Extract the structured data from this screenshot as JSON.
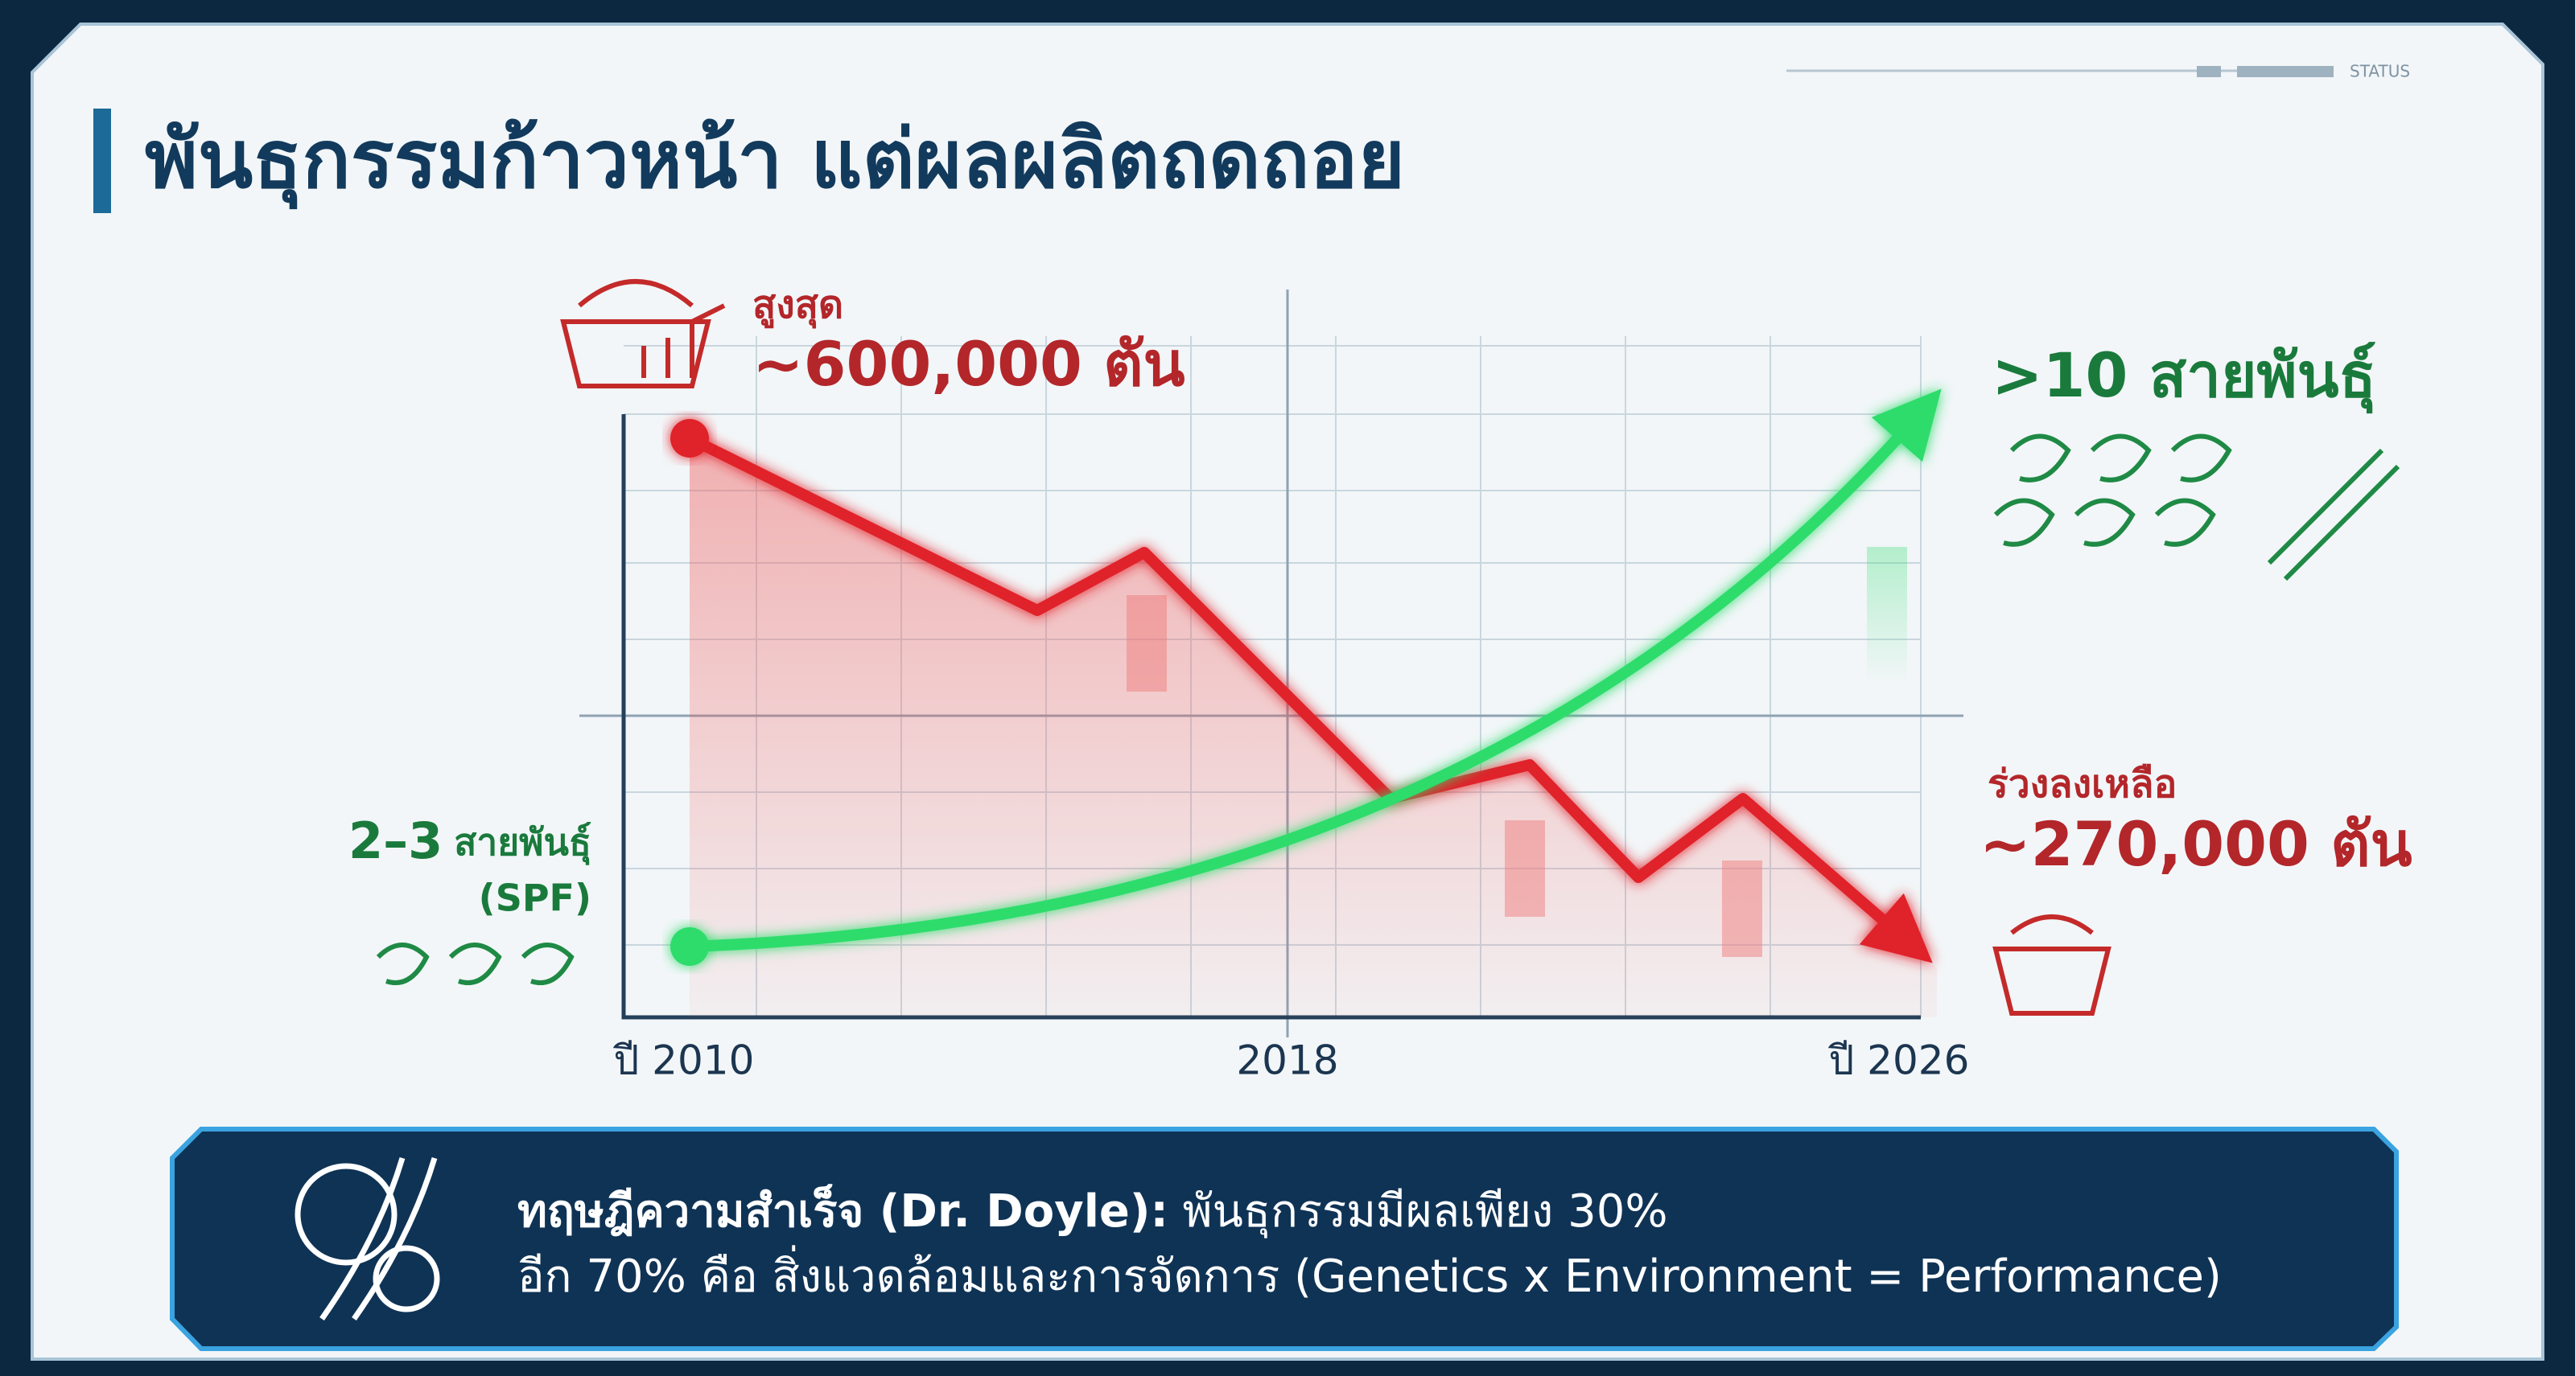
{
  "header": {
    "title": "พันธุกรรมก้าวหน้า แต่ผลผลิตถดถอย",
    "status": "STATUS"
  },
  "chart": {
    "peak": {
      "caption": "สูงสุด",
      "value": "~600,000 ตัน"
    },
    "drop": {
      "caption": "ร่วงลงเหลือ",
      "value": "~270,000 ตัน"
    },
    "strains_start": {
      "value": "2–3",
      "caption": "สายพันธุ์",
      "note": "(SPF)"
    },
    "strains_end": {
      "value": ">10 สายพันธุ์"
    },
    "x_labels": [
      "ปี 2010",
      "2018",
      "ปี 2026"
    ]
  },
  "footer": {
    "lead": "ทฤษฎีความสำเร็จ (Dr. Doyle):",
    "line1": " พันธุกรรมมีผลเพียง 30%",
    "line2": "อีก 70% คือ สิ่งแวดล้อมและการจัดการ (Genetics x Environment = Performance)"
  }
}
